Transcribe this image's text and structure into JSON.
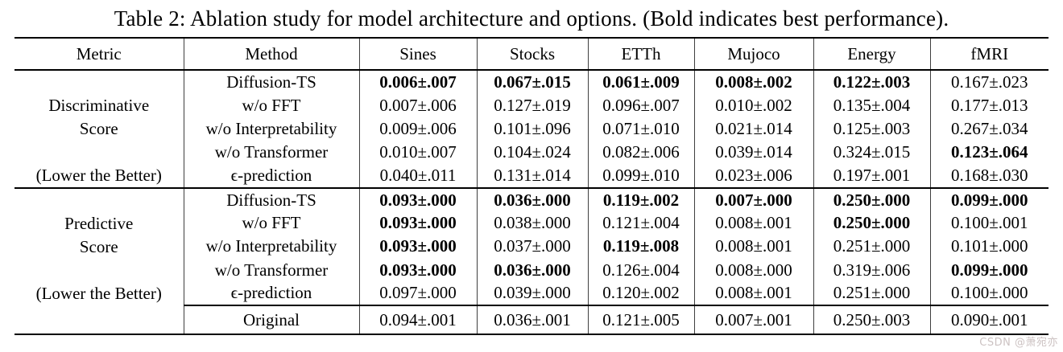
{
  "title": "Table 2: Ablation study for model architecture and options. (Bold indicates best performance).",
  "watermark": "CSDN @萧宛亦",
  "headers": [
    "Metric",
    "Method",
    "Sines",
    "Stocks",
    "ETTh",
    "Mujoco",
    "Energy",
    "fMRI"
  ],
  "sections": [
    {
      "metric1": "Discriminative",
      "metric2": "Score",
      "note": "(Lower the Better)",
      "rows": [
        {
          "method": "Diffusion-TS",
          "values": [
            {
              "v": "0.006±.007",
              "b": true
            },
            {
              "v": "0.067±.015",
              "b": true
            },
            {
              "v": "0.061±.009",
              "b": true
            },
            {
              "v": "0.008±.002",
              "b": true
            },
            {
              "v": "0.122±.003",
              "b": true
            },
            {
              "v": "0.167±.023"
            }
          ]
        },
        {
          "method": "w/o FFT",
          "values": [
            {
              "v": "0.007±.006"
            },
            {
              "v": "0.127±.019"
            },
            {
              "v": "0.096±.007"
            },
            {
              "v": "0.010±.002"
            },
            {
              "v": "0.135±.004"
            },
            {
              "v": "0.177±.013"
            }
          ]
        },
        {
          "method": "w/o Interpretability",
          "values": [
            {
              "v": "0.009±.006"
            },
            {
              "v": "0.101±.096"
            },
            {
              "v": "0.071±.010"
            },
            {
              "v": "0.021±.014"
            },
            {
              "v": "0.125±.003"
            },
            {
              "v": "0.267±.034"
            }
          ]
        },
        {
          "method": "w/o Transformer",
          "values": [
            {
              "v": "0.010±.007"
            },
            {
              "v": "0.104±.024"
            },
            {
              "v": "0.082±.006"
            },
            {
              "v": "0.039±.014"
            },
            {
              "v": "0.324±.015"
            },
            {
              "v": "0.123±.064",
              "b": true
            }
          ]
        },
        {
          "method": "ϵ-prediction",
          "values": [
            {
              "v": "0.040±.011"
            },
            {
              "v": "0.131±.014"
            },
            {
              "v": "0.099±.010"
            },
            {
              "v": "0.023±.006"
            },
            {
              "v": "0.197±.001"
            },
            {
              "v": "0.168±.030"
            }
          ]
        }
      ]
    },
    {
      "metric1": "Predictive",
      "metric2": "Score",
      "note": "(Lower the Better)",
      "rows": [
        {
          "method": "Diffusion-TS",
          "values": [
            {
              "v": "0.093±.000",
              "b": true
            },
            {
              "v": "0.036±.000",
              "b": true
            },
            {
              "v": "0.119±.002",
              "b": true
            },
            {
              "v": "0.007±.000",
              "b": true
            },
            {
              "v": "0.250±.000",
              "b": true
            },
            {
              "v": "0.099±.000",
              "b": true
            }
          ]
        },
        {
          "method": "w/o FFT",
          "values": [
            {
              "v": "0.093±.000",
              "b": true
            },
            {
              "v": "0.038±.000"
            },
            {
              "v": "0.121±.004"
            },
            {
              "v": "0.008±.001"
            },
            {
              "v": "0.250±.000",
              "b": true
            },
            {
              "v": "0.100±.001"
            }
          ]
        },
        {
          "method": "w/o Interpretability",
          "values": [
            {
              "v": "0.093±.000",
              "b": true
            },
            {
              "v": "0.037±.000"
            },
            {
              "v": "0.119±.008",
              "b": true
            },
            {
              "v": "0.008±.001"
            },
            {
              "v": "0.251±.000"
            },
            {
              "v": "0.101±.000"
            }
          ]
        },
        {
          "method": "w/o Transformer",
          "values": [
            {
              "v": "0.093±.000",
              "b": true
            },
            {
              "v": "0.036±.000",
              "b": true
            },
            {
              "v": "0.126±.004"
            },
            {
              "v": "0.008±.000"
            },
            {
              "v": "0.319±.006"
            },
            {
              "v": "0.099±.000",
              "b": true
            }
          ]
        },
        {
          "method": "ϵ-prediction",
          "values": [
            {
              "v": "0.097±.000"
            },
            {
              "v": "0.039±.000"
            },
            {
              "v": "0.120±.002"
            },
            {
              "v": "0.008±.001"
            },
            {
              "v": "0.251±.000"
            },
            {
              "v": "0.100±.000"
            }
          ]
        }
      ]
    }
  ],
  "original": {
    "method": "Original",
    "values": [
      {
        "v": "0.094±.001"
      },
      {
        "v": "0.036±.001"
      },
      {
        "v": "0.121±.005"
      },
      {
        "v": "0.007±.001"
      },
      {
        "v": "0.250±.003"
      },
      {
        "v": "0.090±.001"
      }
    ]
  }
}
